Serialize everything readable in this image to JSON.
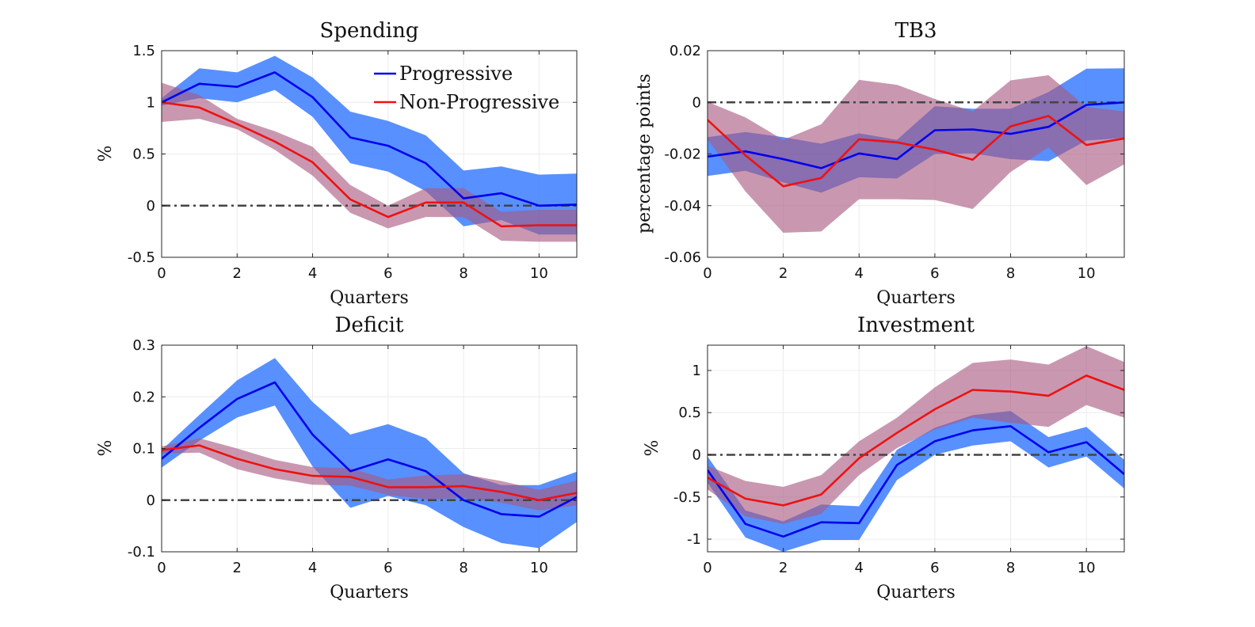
{
  "figure": {
    "legend": {
      "placement": "top-right of Spending panel",
      "entries": [
        {
          "label": "Progressive",
          "color": "#0000ee"
        },
        {
          "label": "Non-Progressive",
          "color": "#ee1111"
        }
      ]
    },
    "band_colors": {
      "progressive": "#3377ff",
      "non_progressive": "#a8587f"
    },
    "zero_line_color": "#444444"
  },
  "chart_data": [
    {
      "type": "line",
      "title": "Spending",
      "xlabel": "Quarters",
      "ylabel": "%",
      "xlim": [
        0,
        11
      ],
      "ylim": [
        -0.5,
        1.5
      ],
      "xticks": [
        0,
        2,
        4,
        6,
        8,
        10
      ],
      "yticks": [
        -0.5,
        0,
        0.5,
        1,
        1.5
      ],
      "ytick_labels": [
        "-0.5",
        "0",
        "0.5",
        "1",
        "1.5"
      ],
      "grid": true,
      "x": [
        0,
        1,
        2,
        3,
        4,
        5,
        6,
        7,
        8,
        9,
        10,
        11
      ],
      "series": [
        {
          "name": "Progressive",
          "values": [
            1.0,
            1.18,
            1.15,
            1.29,
            1.05,
            0.66,
            0.58,
            0.41,
            0.07,
            0.12,
            0.0,
            0.01
          ],
          "lower": [
            0.97,
            1.04,
            1.0,
            1.12,
            0.86,
            0.41,
            0.33,
            0.14,
            -0.2,
            -0.14,
            -0.28,
            -0.28
          ],
          "upper": [
            1.04,
            1.33,
            1.29,
            1.45,
            1.24,
            0.91,
            0.82,
            0.68,
            0.34,
            0.38,
            0.3,
            0.31
          ]
        },
        {
          "name": "Non-Progressive",
          "values": [
            1.0,
            0.95,
            0.79,
            0.62,
            0.42,
            0.06,
            -0.11,
            0.03,
            0.03,
            -0.2,
            -0.19,
            -0.19
          ],
          "lower": [
            0.81,
            0.84,
            0.74,
            0.54,
            0.29,
            -0.07,
            -0.22,
            -0.11,
            -0.11,
            -0.34,
            -0.35,
            -0.35
          ],
          "upper": [
            1.19,
            1.07,
            0.84,
            0.72,
            0.57,
            0.2,
            0.0,
            0.17,
            0.17,
            -0.06,
            -0.04,
            -0.04
          ]
        }
      ]
    },
    {
      "type": "line",
      "title": "TB3",
      "xlabel": "Quarters",
      "ylabel": "percentage points",
      "xlim": [
        0,
        11
      ],
      "ylim": [
        -0.06,
        0.02
      ],
      "xticks": [
        0,
        2,
        4,
        6,
        8,
        10
      ],
      "yticks": [
        -0.06,
        -0.04,
        -0.02,
        0,
        0.02
      ],
      "ytick_labels": [
        "-0.06",
        "-0.04",
        "-0.02",
        "0",
        "0.02"
      ],
      "grid": true,
      "x": [
        0,
        1,
        2,
        3,
        4,
        5,
        6,
        7,
        8,
        9,
        10,
        11
      ],
      "series": [
        {
          "name": "Progressive",
          "values": [
            -0.021,
            -0.019,
            -0.022,
            -0.0255,
            -0.0198,
            -0.022,
            -0.0108,
            -0.0105,
            -0.0122,
            -0.0095,
            -0.001,
            0.0
          ],
          "lower": [
            -0.0285,
            -0.0265,
            -0.031,
            -0.035,
            -0.029,
            -0.0295,
            -0.02,
            -0.0198,
            -0.022,
            -0.0228,
            -0.0148,
            -0.0138
          ],
          "upper": [
            -0.0135,
            -0.0115,
            -0.0135,
            -0.016,
            -0.012,
            -0.0145,
            -0.0015,
            -0.0025,
            -0.0025,
            0.004,
            0.013,
            0.0132
          ]
        },
        {
          "name": "Non-Progressive",
          "values": [
            -0.0068,
            -0.0205,
            -0.0325,
            -0.0293,
            -0.0143,
            -0.0155,
            -0.0183,
            -0.0222,
            -0.0093,
            -0.0053,
            -0.0165,
            -0.014
          ],
          "lower": [
            -0.0142,
            -0.0345,
            -0.0505,
            -0.05,
            -0.0375,
            -0.0375,
            -0.0378,
            -0.0413,
            -0.027,
            -0.0175,
            -0.032,
            -0.024
          ],
          "upper": [
            0.0002,
            -0.0058,
            -0.0145,
            -0.0085,
            0.0087,
            0.0068,
            0.0013,
            -0.0035,
            0.0085,
            0.0105,
            -0.0018,
            -0.0035
          ]
        }
      ]
    },
    {
      "type": "line",
      "title": "Deficit",
      "xlabel": "Quarters",
      "ylabel": "%",
      "xlim": [
        0,
        11
      ],
      "ylim": [
        -0.1,
        0.3
      ],
      "xticks": [
        0,
        2,
        4,
        6,
        8,
        10
      ],
      "yticks": [
        -0.1,
        0,
        0.1,
        0.2,
        0.3
      ],
      "ytick_labels": [
        "-0.1",
        "0",
        "0.1",
        "0.2",
        "0.3"
      ],
      "grid": true,
      "x": [
        0,
        1,
        2,
        3,
        4,
        5,
        6,
        7,
        8,
        9,
        10,
        11
      ],
      "series": [
        {
          "name": "Progressive",
          "values": [
            0.08,
            0.14,
            0.196,
            0.228,
            0.127,
            0.056,
            0.079,
            0.056,
            0.0,
            -0.027,
            -0.032,
            0.006
          ],
          "lower": [
            0.063,
            0.115,
            0.16,
            0.183,
            0.065,
            -0.015,
            0.008,
            -0.01,
            -0.052,
            -0.083,
            -0.093,
            -0.042
          ],
          "upper": [
            0.097,
            0.165,
            0.232,
            0.275,
            0.19,
            0.127,
            0.147,
            0.12,
            0.052,
            0.029,
            0.029,
            0.055
          ]
        },
        {
          "name": "Non-Progressive",
          "values": [
            0.097,
            0.106,
            0.08,
            0.06,
            0.047,
            0.045,
            0.025,
            0.025,
            0.027,
            0.016,
            0.0,
            0.014
          ],
          "lower": [
            0.09,
            0.092,
            0.06,
            0.042,
            0.03,
            0.028,
            0.01,
            0.002,
            0.004,
            -0.005,
            -0.02,
            -0.01
          ],
          "upper": [
            0.104,
            0.12,
            0.1,
            0.078,
            0.064,
            0.062,
            0.04,
            0.048,
            0.05,
            0.037,
            0.02,
            0.038
          ]
        }
      ]
    },
    {
      "type": "line",
      "title": "Investment",
      "xlabel": "Quarters",
      "ylabel": "%",
      "xlim": [
        0,
        11
      ],
      "ylim": [
        -1.15,
        1.3
      ],
      "xticks": [
        0,
        2,
        4,
        6,
        8,
        10
      ],
      "yticks": [
        -1,
        -0.5,
        0,
        0.5,
        1
      ],
      "ytick_labels": [
        "-1",
        "-0.5",
        "0",
        "0.5",
        "1"
      ],
      "grid": true,
      "x": [
        0,
        1,
        2,
        3,
        4,
        5,
        6,
        7,
        8,
        9,
        10,
        11
      ],
      "series": [
        {
          "name": "Progressive",
          "values": [
            -0.18,
            -0.82,
            -0.97,
            -0.8,
            -0.81,
            -0.12,
            0.16,
            0.29,
            0.34,
            0.03,
            0.15,
            -0.23
          ],
          "lower": [
            -0.33,
            -0.98,
            -1.15,
            -1.01,
            -1.01,
            -0.3,
            0.0,
            0.11,
            0.16,
            -0.15,
            -0.02,
            -0.4
          ],
          "upper": [
            -0.02,
            -0.66,
            -0.79,
            -0.59,
            -0.61,
            0.06,
            0.32,
            0.47,
            0.52,
            0.21,
            0.33,
            -0.06
          ]
        },
        {
          "name": "Non-Progressive",
          "values": [
            -0.27,
            -0.52,
            -0.6,
            -0.47,
            -0.04,
            0.26,
            0.54,
            0.77,
            0.75,
            0.7,
            0.94,
            0.77
          ],
          "lower": [
            -0.41,
            -0.73,
            -0.82,
            -0.7,
            -0.24,
            0.08,
            0.3,
            0.44,
            0.38,
            0.33,
            0.59,
            0.44
          ],
          "upper": [
            -0.13,
            -0.31,
            -0.38,
            -0.24,
            0.16,
            0.44,
            0.8,
            1.09,
            1.13,
            1.07,
            1.29,
            1.1
          ]
        }
      ]
    }
  ]
}
